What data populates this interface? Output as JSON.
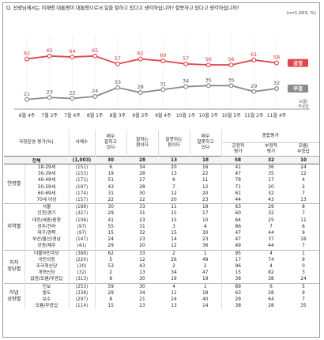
{
  "question": "Q. 선생님께서는 이재명 대통령이 대통령으로서 일을 잘하고 있다고 생각하십니까? 잘못하고 있다고 생각하십니까?",
  "sample_note": "(n=1,003, %)",
  "chart_data": {
    "type": "line",
    "categories": [
      "6월 4주",
      "7월 2주",
      "7월 4주",
      "8월 1주",
      "8월 3주",
      "9월 2주",
      "9월 4주",
      "10월 1주",
      "10월 3주",
      "10월 5주",
      "11월 2주",
      "11월 4주"
    ],
    "series": [
      {
        "name": "긍정",
        "values": [
          62,
          65,
          64,
          65,
          57,
          62,
          60,
          57,
          56,
          56,
          61,
          58
        ],
        "color": "#e0474c"
      },
      {
        "name": "부정",
        "values": [
          21,
          23,
          22,
          24,
          33,
          28,
          31,
          34,
          35,
          35,
          29,
          32
        ],
        "color": "#8a8a8a"
      }
    ],
    "ylim": [
      0,
      80
    ],
    "legend_position": "right",
    "annotation": [
      "모름/",
      "무응답"
    ]
  },
  "table": {
    "headers": {
      "group": "국정운영 평가(%)",
      "n": "사례수",
      "c1": [
        "매우",
        "잘하고",
        "있다"
      ],
      "c2": [
        "잘하는",
        "편이다"
      ],
      "c3": [
        "잘못하는",
        "편이다"
      ],
      "c4": [
        "매우",
        "잘못하고",
        "있다"
      ],
      "summary": "종합평가",
      "c5": [
        "긍정적",
        "평가"
      ],
      "c6": [
        "부정적",
        "평가"
      ],
      "c7": [
        "모름/",
        "무응답"
      ]
    },
    "total": {
      "label": "전체",
      "n": "(1,003)",
      "v": [
        "30",
        "28",
        "13",
        "18",
        "58",
        "32",
        "10"
      ]
    },
    "groups": [
      {
        "name": [
          "연령별"
        ],
        "rows": [
          {
            "cat": "18-29세",
            "n": "(151)",
            "v": [
              "6",
              "34",
              "20",
              "16",
              "41",
              "36",
              "24"
            ]
          },
          {
            "cat": "30-39세",
            "n": "(153)",
            "v": [
              "19",
              "28",
              "13",
              "22",
              "47",
              "35",
              "12"
            ]
          },
          {
            "cat": "40-49세",
            "n": "(171)",
            "v": [
              "51",
              "27",
              "6",
              "11",
              "78",
              "17",
              "4"
            ]
          },
          {
            "cat": "50-59세",
            "n": "(197)",
            "v": [
              "43",
              "28",
              "7",
              "12",
              "71",
              "20",
              "2"
            ]
          },
          {
            "cat": "60-69세",
            "n": "(174)",
            "v": [
              "31",
              "30",
              "12",
              "20",
              "61",
              "32",
              "7"
            ]
          },
          {
            "cat": "70세 이상",
            "n": "(157)",
            "v": [
              "22",
              "22",
              "20",
              "23",
              "44",
              "43",
              "13"
            ]
          }
        ]
      },
      {
        "name": [
          "지역별"
        ],
        "rows": [
          {
            "cat": "서울",
            "n": "(188)",
            "v": [
              "30",
              "33",
              "11",
              "18",
              "63",
              "29",
              "8"
            ]
          },
          {
            "cat": "인천/경기",
            "n": "(327)",
            "v": [
              "29",
              "31",
              "15",
              "17",
              "60",
              "32",
              "7"
            ]
          },
          {
            "cat": "대전/세종/충청",
            "n": "(106)",
            "v": [
              "41",
              "23",
              "15",
              "10",
              "64",
              "25",
              "11"
            ]
          },
          {
            "cat": "광주/전라",
            "n": "(97)",
            "v": [
              "55",
              "31",
              "3",
              "4",
              "86",
              "7",
              "6"
            ]
          },
          {
            "cat": "대구/경북",
            "n": "(97)",
            "v": [
              "15",
              "32",
              "15",
              "30",
              "47",
              "44",
              "9"
            ]
          },
          {
            "cat": "부산/울산/경남",
            "n": "(147)",
            "v": [
              "24",
              "23",
              "14",
              "23",
              "47",
              "37",
              "16"
            ]
          },
          {
            "cat": "강원/제주",
            "n": "(41)",
            "v": [
              "29",
              "20",
              "12",
              "36",
              "49",
              "44",
              "7"
            ]
          }
        ]
      },
      {
        "name": [
          "지지",
          "정당별"
        ],
        "rows": [
          {
            "cat": "더불어민주당",
            "n": "(388)",
            "v": [
              "62",
              "33",
              "2",
              "1",
              "95",
              "4",
              "1"
            ]
          },
          {
            "cat": "국민의힘",
            "n": "(220)",
            "v": [
              "5",
              "12",
              "26",
              "48",
              "17",
              "74",
              "9"
            ]
          },
          {
            "cat": "조국혁신당",
            "n": "(30)",
            "v": [
              "53",
              "43",
              "2",
              "2",
              "96",
              "4",
              "0"
            ]
          },
          {
            "cat": "개혁신당",
            "n": "(32)",
            "v": [
              "2",
              "13",
              "34",
              "47",
              "15",
              "82",
              "3"
            ]
          },
          {
            "cat": "없음/모름/무응답",
            "n": "(313)",
            "v": [
              "8",
              "30",
              "19",
              "19",
              "38",
              "38",
              "24"
            ]
          }
        ]
      },
      {
        "name": [
          "이념",
          "성향별"
        ],
        "rows": [
          {
            "cat": "진보",
            "n": "(253)",
            "v": [
              "59",
              "30",
              "4",
              "1",
              "89",
              "6",
              "5"
            ]
          },
          {
            "cat": "중도",
            "n": "(338)",
            "v": [
              "29",
              "34",
              "11",
              "18",
              "63",
              "28",
              "9"
            ]
          },
          {
            "cat": "보수",
            "n": "(297)",
            "v": [
              "8",
              "21",
              "24",
              "40",
              "29",
              "64",
              "7"
            ]
          },
          {
            "cat": "모름/무응답",
            "n": "(114)",
            "v": [
              "15",
              "23",
              "13",
              "14",
              "38",
              "28",
              "35"
            ]
          }
        ]
      }
    ]
  }
}
